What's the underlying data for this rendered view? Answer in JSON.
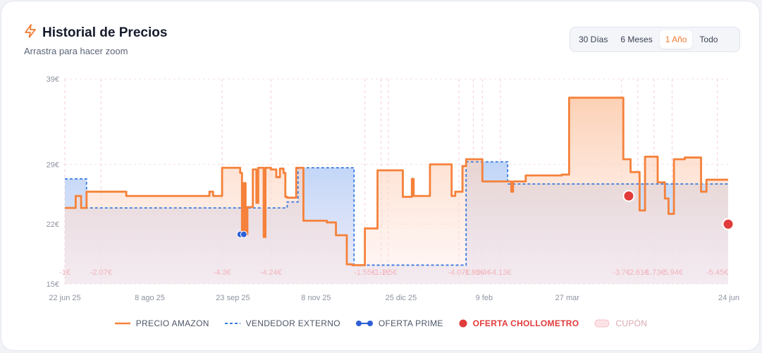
{
  "header": {
    "title": "Historial de Precios",
    "subtitle": "Arrastra para hacer zoom",
    "icon": "bolt-icon",
    "accent": "#f07a2f"
  },
  "range_tabs": [
    {
      "label": "30 Días",
      "active": false
    },
    {
      "label": "6 Meses",
      "active": false
    },
    {
      "label": "1 Año",
      "active": true
    },
    {
      "label": "Todo",
      "active": false
    }
  ],
  "legend": {
    "amazon": "PRECIO AMAZON",
    "external": "VENDEDOR EXTERNO",
    "prime": "OFERTA PRIME",
    "chollometro": "OFERTA CHOLLOMETRO",
    "coupon": "CUPÓN"
  },
  "colors": {
    "amazon": "#f5813a",
    "external": "#3a7be0",
    "prime": "#2d5fd6",
    "chollometro": "#e23b3b",
    "coupon": "#f3c2c6"
  },
  "chart_data": {
    "type": "line",
    "x_axis": {
      "type": "date",
      "range": [
        "2025-06-22",
        "2026-06-24"
      ],
      "ticks": [
        {
          "date": "2025-06-22",
          "label": "22 jun 25"
        },
        {
          "date": "2025-08-08",
          "label": "8 ago 25"
        },
        {
          "date": "2025-09-23",
          "label": "23 sep 25"
        },
        {
          "date": "2025-11-08",
          "label": "8 nov 25"
        },
        {
          "date": "2025-12-25",
          "label": "25 dic 25"
        },
        {
          "date": "2026-02-09",
          "label": "9 feb"
        },
        {
          "date": "2026-03-27",
          "label": "27 mar"
        },
        {
          "date": "2026-06-24",
          "label": "24 jun"
        }
      ]
    },
    "y_axis": {
      "range": [
        15,
        39
      ],
      "ticks": [
        {
          "value": 15,
          "label": "15€"
        },
        {
          "value": 22,
          "label": "22€"
        },
        {
          "value": 29,
          "label": "29€"
        },
        {
          "value": 39,
          "label": "39€"
        }
      ],
      "grid": true
    },
    "series": [
      {
        "name": "PRECIO AMAZON",
        "style": "step",
        "points": [
          [
            "2025-06-22",
            23.9
          ],
          [
            "2025-06-28",
            25.3
          ],
          [
            "2025-07-01",
            23.9
          ],
          [
            "2025-07-04",
            25.8
          ],
          [
            "2025-07-26",
            25.3
          ],
          [
            "2025-09-10",
            25.8
          ],
          [
            "2025-09-12",
            25.3
          ],
          [
            "2025-09-17",
            28.6
          ],
          [
            "2025-09-27",
            28.0
          ],
          [
            "2025-09-28",
            21.0
          ],
          [
            "2025-09-29",
            26.8
          ],
          [
            "2025-09-30",
            20.8
          ],
          [
            "2025-10-01",
            24.0
          ],
          [
            "2025-10-04",
            28.4
          ],
          [
            "2025-10-06",
            24.5
          ],
          [
            "2025-10-07",
            28.6
          ],
          [
            "2025-10-10",
            20.5
          ],
          [
            "2025-10-11",
            28.6
          ],
          [
            "2025-10-14",
            28.4
          ],
          [
            "2025-10-17",
            27.5
          ],
          [
            "2025-10-19",
            28.5
          ],
          [
            "2025-10-21",
            28.0
          ],
          [
            "2025-10-22",
            25.2
          ],
          [
            "2025-10-23",
            25.1
          ],
          [
            "2025-10-28",
            28.6
          ],
          [
            "2025-10-29",
            28.6
          ],
          [
            "2025-11-01",
            22.4
          ],
          [
            "2025-11-14",
            22.2
          ],
          [
            "2025-11-19",
            20.7
          ],
          [
            "2025-11-25",
            17.3
          ],
          [
            "2025-11-28",
            17.2
          ],
          [
            "2025-12-05",
            21.5
          ],
          [
            "2025-12-06",
            21.5
          ],
          [
            "2025-12-12",
            28.3
          ],
          [
            "2025-12-26",
            25.2
          ],
          [
            "2025-12-31",
            27.3
          ],
          [
            "2026-01-01",
            25.3
          ],
          [
            "2026-01-10",
            29.0
          ],
          [
            "2026-01-22",
            25.3
          ],
          [
            "2026-01-24",
            25.8
          ],
          [
            "2026-01-28",
            28.8
          ],
          [
            "2026-01-30",
            29.6
          ],
          [
            "2026-02-08",
            27.0
          ],
          [
            "2026-02-24",
            25.8
          ],
          [
            "2026-02-25",
            27.0
          ],
          [
            "2026-03-04",
            27.7
          ],
          [
            "2026-03-07",
            27.7
          ],
          [
            "2026-03-24",
            27.8
          ],
          [
            "2026-03-28",
            36.8
          ],
          [
            "2026-04-27",
            29.6
          ],
          [
            "2026-05-01",
            28.1
          ],
          [
            "2026-05-06",
            23.6
          ],
          [
            "2026-05-09",
            29.9
          ],
          [
            "2026-05-16",
            26.9
          ],
          [
            "2026-05-20",
            25.0
          ],
          [
            "2026-05-22",
            23.2
          ],
          [
            "2026-05-25",
            29.6
          ],
          [
            "2026-05-31",
            29.8
          ],
          [
            "2026-06-09",
            25.8
          ],
          [
            "2026-06-12",
            27.2
          ],
          [
            "2026-06-24",
            27.2
          ]
        ]
      },
      {
        "name": "VENDEDOR EXTERNO",
        "style": "step-dashed",
        "points": [
          [
            "2025-06-22",
            27.3
          ],
          [
            "2025-07-04",
            23.9
          ],
          [
            "2025-10-23",
            24.6
          ],
          [
            "2025-10-29",
            28.6
          ],
          [
            "2025-11-29",
            17.2
          ],
          [
            "2026-01-30",
            29.3
          ],
          [
            "2026-02-22",
            26.7
          ],
          [
            "2026-06-24",
            26.7
          ]
        ]
      }
    ],
    "prime_offers": [
      {
        "date": "2025-09-27",
        "price": 20.8
      },
      {
        "date": "2025-09-29",
        "price": 20.8
      }
    ],
    "chollometro_offers": [
      {
        "date": "2026-04-30",
        "price": 25.3
      },
      {
        "date": "2026-06-24",
        "price": 22.0
      }
    ],
    "coupons": [
      {
        "date": "2025-06-22",
        "label": "-1€"
      },
      {
        "date": "2025-07-12",
        "label": "-2.07€"
      },
      {
        "date": "2025-09-17",
        "label": "-4.3€"
      },
      {
        "date": "2025-10-14",
        "label": "-4.24€"
      },
      {
        "date": "2025-12-05",
        "label": "-1.55€"
      },
      {
        "date": "2025-12-14",
        "label": "-1.1€"
      },
      {
        "date": "2025-12-18",
        "label": "-2.5€"
      },
      {
        "date": "2026-01-26",
        "label": "-4.07€"
      },
      {
        "date": "2026-02-03",
        "label": "-1.85€"
      },
      {
        "date": "2026-02-08",
        "label": "-2.4€"
      },
      {
        "date": "2026-02-18",
        "label": "-4.13€"
      },
      {
        "date": "2026-04-26",
        "label": "-3.7€"
      },
      {
        "date": "2026-05-05",
        "label": "-2.61€"
      },
      {
        "date": "2026-05-14",
        "label": "-1.73€"
      },
      {
        "date": "2026-05-24",
        "label": "-5.94€"
      },
      {
        "date": "2026-06-18",
        "label": "-5.45€"
      }
    ]
  }
}
